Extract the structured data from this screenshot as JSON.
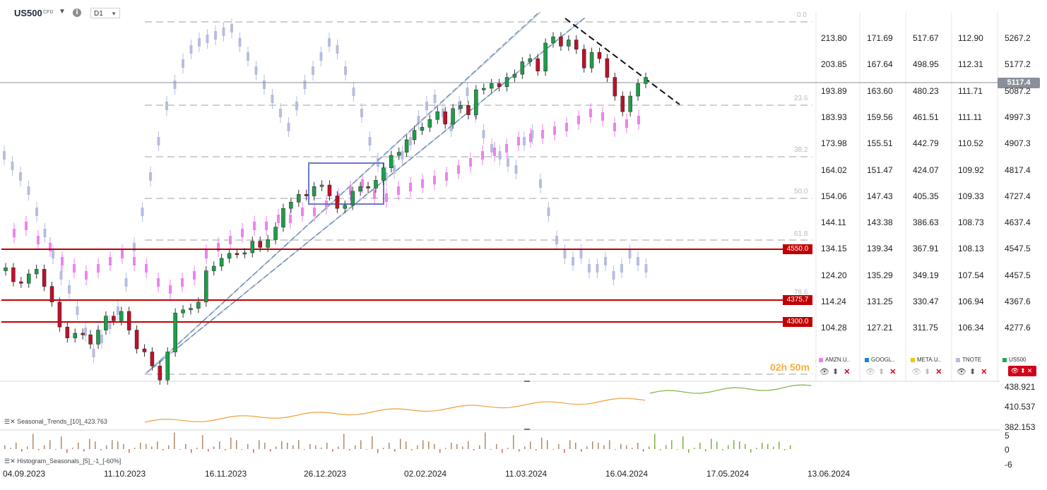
{
  "header": {
    "symbol": "US500",
    "symbol_sub": "CFD",
    "info_glyph": "i",
    "timeframe": "D1",
    "caret": "▼"
  },
  "current_price": "5117.4",
  "horizontal_levels": [
    "4550.0",
    "4375.7",
    "4300.0"
  ],
  "fib_levels": [
    "0.0",
    "23.6",
    "38.2",
    "50.0",
    "61.8",
    "78.6"
  ],
  "countdown": "02h 50m",
  "price_axis": {
    "columns": [
      {
        "name": "AMZN.U..",
        "color": "#ee82ee",
        "values": [
          "213.80",
          "203.85",
          "193.89",
          "183.93",
          "173.98",
          "164.02",
          "154.06",
          "144.11",
          "134.15",
          "124.20",
          "114.24",
          "104.28"
        ]
      },
      {
        "name": "GOOGL..",
        "color": "#1e7fe0",
        "values": [
          "171.69",
          "167.64",
          "163.60",
          "159.56",
          "155.51",
          "151.47",
          "147.43",
          "143.38",
          "139.34",
          "135.29",
          "131.25",
          "127.21"
        ]
      },
      {
        "name": "META.U..",
        "color": "#f2c500",
        "values": [
          "517.67",
          "498.95",
          "480.23",
          "461.51",
          "442.79",
          "424.07",
          "405.35",
          "386.63",
          "367.91",
          "349.19",
          "330.47",
          "311.75"
        ]
      },
      {
        "name": "TNOTE",
        "color": "#b7bde0",
        "values": [
          "112.90",
          "112.31",
          "111.71",
          "111.11",
          "110.52",
          "109.92",
          "109.33",
          "108.73",
          "108.13",
          "107.54",
          "106.94",
          "106.34"
        ]
      },
      {
        "name": "US500",
        "color": "#26a65b",
        "values": [
          "5267.2",
          "5177.2",
          "5087.2",
          "4997.3",
          "4907.3",
          "4817.4",
          "4727.4",
          "4637.4",
          "4547.5",
          "4457.5",
          "4367.6",
          "4277.6"
        ]
      }
    ]
  },
  "controls": {
    "eye": "👁",
    "updown": "⬍",
    "close": "✕"
  },
  "seasonal_trends": {
    "label": "Seasonal_Trends_[10]_423.763",
    "axis": [
      "438.921",
      "410.537",
      "382.153"
    ]
  },
  "histogram": {
    "label": "Histogram_Seasonals_[5]_-1_[-60%]",
    "axis": [
      "5",
      "0",
      "-6"
    ]
  },
  "x_axis": [
    "04.09.2023",
    "11.10.2023",
    "16.11.2023",
    "26.12.2023",
    "02.02.2024",
    "11.03.2024",
    "16.04.2024",
    "17.05.2024",
    "13.06.2024"
  ],
  "chart_data": {
    "type": "candlestick",
    "title": "US500",
    "x": [
      "04.09.2023",
      "06.09.2023",
      "08.09.2023",
      "12.09.2023",
      "14.09.2023",
      "18.09.2023",
      "20.09.2023",
      "22.09.2023",
      "26.09.2023",
      "28.09.2023",
      "02.10.2023",
      "04.10.2023",
      "06.10.2023",
      "10.10.2023",
      "12.10.2023",
      "16.10.2023",
      "18.10.2023",
      "20.10.2023",
      "24.10.2023",
      "26.10.2023",
      "30.10.2023",
      "01.11.2023",
      "03.11.2023",
      "07.11.2023",
      "09.11.2023",
      "13.11.2023",
      "15.11.2023",
      "17.11.2023",
      "21.11.2023",
      "23.11.2023",
      "27.11.2023",
      "29.11.2023",
      "01.12.2023",
      "05.12.2023",
      "07.12.2023",
      "11.12.2023",
      "13.12.2023",
      "15.12.2023",
      "19.12.2023",
      "21.12.2023",
      "26.12.2023",
      "28.12.2023",
      "02.01.2024",
      "04.01.2024",
      "08.01.2024",
      "10.01.2024",
      "12.01.2024",
      "16.01.2024",
      "18.01.2024",
      "22.01.2024",
      "24.01.2024",
      "26.01.2024",
      "30.01.2024",
      "01.02.2024",
      "05.02.2024",
      "07.02.2024",
      "09.02.2024",
      "13.02.2024",
      "15.02.2024",
      "19.02.2024",
      "21.02.2024",
      "23.02.2024",
      "27.02.2024",
      "29.02.2024",
      "04.03.2024",
      "06.03.2024",
      "08.03.2024",
      "12.03.2024",
      "14.03.2024",
      "18.03.2024",
      "20.03.2024",
      "22.03.2024",
      "26.03.2024",
      "28.03.2024",
      "02.04.2024",
      "04.04.2024",
      "08.04.2024",
      "10.04.2024",
      "12.04.2024",
      "16.04.2024",
      "18.04.2024",
      "22.04.2024",
      "24.04.2024",
      "26.04.2024"
    ],
    "close": [
      4510,
      4465,
      4460,
      4490,
      4505,
      4450,
      4400,
      4320,
      4285,
      4300,
      4295,
      4265,
      4310,
      4355,
      4340,
      4370,
      4310,
      4250,
      4240,
      4195,
      4150,
      4240,
      4365,
      4375,
      4380,
      4400,
      4500,
      4515,
      4540,
      4556,
      4555,
      4558,
      4595,
      4575,
      4600,
      4640,
      4700,
      4720,
      4745,
      4740,
      4770,
      4775,
      4740,
      4700,
      4710,
      4755,
      4770,
      4765,
      4790,
      4830,
      4870,
      4880,
      4920,
      4950,
      4960,
      4985,
      5010,
      4970,
      5020,
      5030,
      5000,
      5080,
      5085,
      5100,
      5090,
      5120,
      5130,
      5170,
      5180,
      5140,
      5230,
      5250,
      5220,
      5240,
      5210,
      5150,
      5200,
      5180,
      5120,
      5060,
      5010,
      5060,
      5100,
      5120
    ],
    "ylim": [
      4180,
      5300
    ],
    "overlays": [
      "AMZN.U..",
      "GOOGL..",
      "META.U..",
      "TNOTE"
    ]
  }
}
